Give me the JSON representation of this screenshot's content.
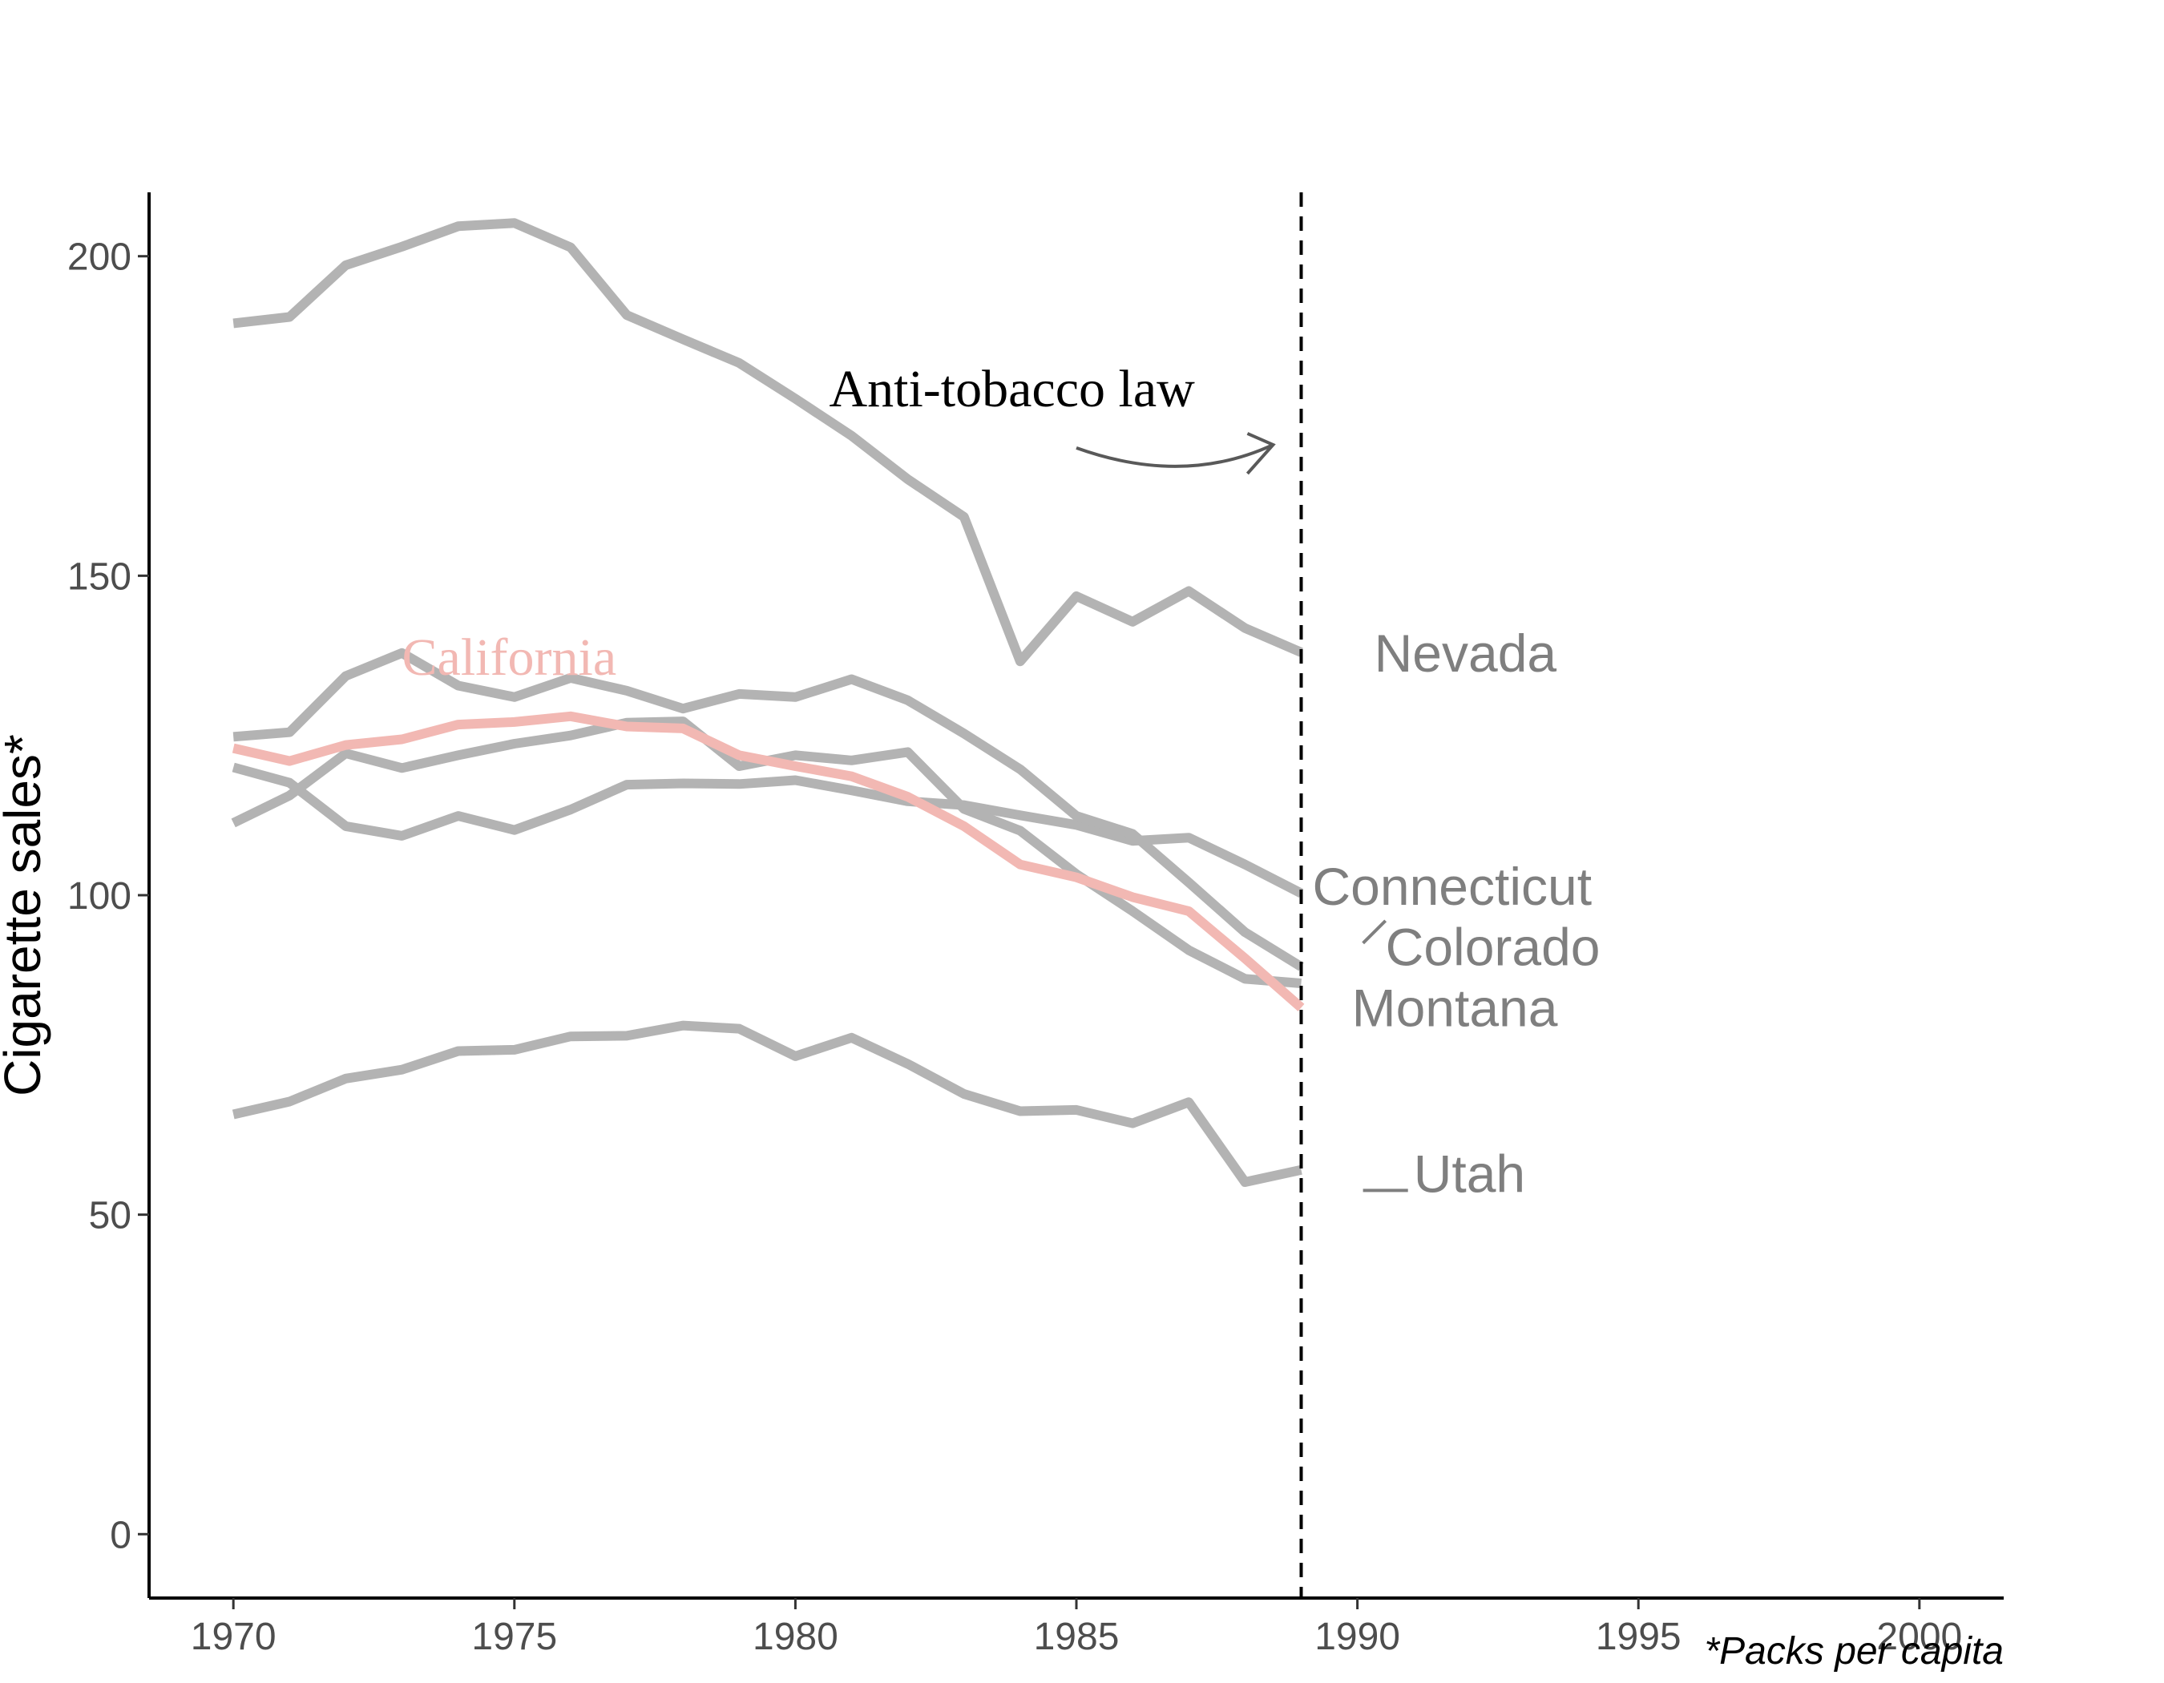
{
  "chart_data": {
    "type": "line",
    "title": "",
    "xlabel": "",
    "ylabel": "Cigarette sales*",
    "caption": "*Packs per capita",
    "xlim": [
      1968.5,
      2001.5
    ],
    "ylim": [
      -10,
      210
    ],
    "x_ticks": [
      1970,
      1975,
      1980,
      1985,
      1990,
      1995,
      2000
    ],
    "y_ticks": [
      0,
      50,
      100,
      150,
      200
    ],
    "grid": false,
    "legend": "none",
    "x": [
      1970,
      1971,
      1972,
      1973,
      1974,
      1975,
      1976,
      1977,
      1978,
      1979,
      1980,
      1981,
      1982,
      1983,
      1984,
      1985,
      1986,
      1987,
      1988,
      1989
    ],
    "series": [
      {
        "name": "Nevada",
        "highlight": false,
        "values": [
          189.5,
          190.5,
          198.6,
          201.5,
          204.7,
          205.2,
          201.4,
          190.8,
          187.0,
          183.3,
          177.7,
          171.9,
          165.1,
          159.2,
          136.6,
          146.8,
          142.8,
          147.6,
          141.8,
          138.0
        ]
      },
      {
        "name": "Connecticut",
        "highlight": false,
        "values": [
          120.0,
          117.6,
          110.8,
          109.3,
          112.4,
          110.2,
          113.4,
          117.3,
          117.5,
          117.4,
          118.0,
          116.4,
          114.7,
          114.1,
          112.5,
          111.0,
          108.5,
          109.0,
          104.8,
          100.3
        ]
      },
      {
        "name": "Colorado",
        "highlight": false,
        "values": [
          124.8,
          125.5,
          134.3,
          137.9,
          132.8,
          131.0,
          134.0,
          132.0,
          129.2,
          131.5,
          131.0,
          133.8,
          130.5,
          125.3,
          119.7,
          112.4,
          109.6,
          102.0,
          94.2,
          88.8
        ]
      },
      {
        "name": "Montana",
        "highlight": false,
        "values": [
          111.3,
          115.6,
          122.2,
          119.9,
          121.9,
          123.7,
          125.0,
          127.0,
          127.2,
          120.2,
          121.9,
          121.1,
          122.4,
          113.5,
          110.1,
          103.3,
          97.5,
          91.4,
          86.9,
          86.2
        ]
      },
      {
        "name": "Utah",
        "highlight": false,
        "values": [
          65.7,
          67.7,
          71.3,
          72.7,
          75.6,
          75.8,
          77.9,
          78.0,
          79.6,
          79.1,
          74.8,
          77.7,
          73.6,
          68.9,
          66.2,
          66.4,
          64.3,
          67.6,
          55.1,
          57.0
        ]
      },
      {
        "name": "California",
        "highlight": true,
        "values": [
          123.0,
          121.0,
          123.5,
          124.4,
          126.7,
          127.1,
          128.0,
          126.4,
          126.1,
          121.9,
          120.2,
          118.6,
          115.4,
          110.8,
          104.8,
          102.8,
          99.7,
          97.5,
          90.1,
          82.4
        ]
      }
    ],
    "labels": {
      "Nevada": "Nevada",
      "Connecticut": "Connecticut",
      "Colorado": "Colorado",
      "Montana": "Montana",
      "Utah": "Utah",
      "California": "California"
    },
    "annotations": [
      {
        "text": "Anti-tobacco law",
        "x": 1989
      }
    ],
    "colors": {
      "context": "#b3b3b3",
      "highlight": "#f2b8b3",
      "label": "#7f7f7f",
      "arrow": "#595959",
      "axis": "#000000"
    }
  }
}
